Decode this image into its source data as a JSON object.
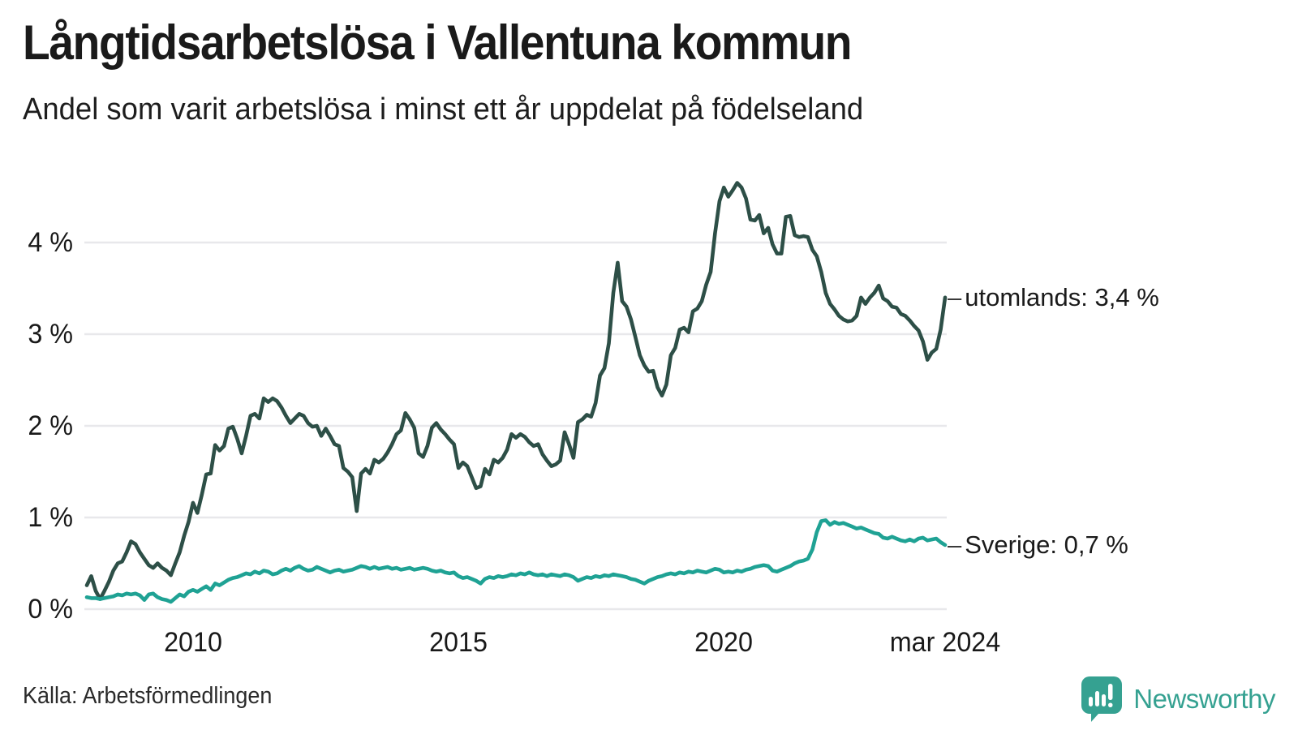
{
  "header": {
    "title": "Långtidsarbetslösa i Vallentuna kommun",
    "subtitle": "Andel som varit arbetslösa i minst ett år uppdelat på födelseland"
  },
  "footer": {
    "source": "Källa: Arbetsförmedlingen",
    "logo_text": "Newsworthy",
    "brand_color": "#35a191"
  },
  "chart_data": {
    "type": "line",
    "title": "Långtidsarbetslösa i Vallentuna kommun",
    "subtitle": "Andel som varit arbetslösa i minst ett år uppdelat på födelseland",
    "x_unit": "month",
    "x_start": "2008-01",
    "x_end": "2024-03",
    "ylim": [
      0,
      4.8
    ],
    "grid": "horizontal",
    "grid_color": "#e8e8eb",
    "label_dash": "–",
    "y_ticks": [
      {
        "value": 0,
        "label": "0 %"
      },
      {
        "value": 1,
        "label": "1 %"
      },
      {
        "value": 2,
        "label": "2 %"
      },
      {
        "value": 3,
        "label": "3 %"
      },
      {
        "value": 4,
        "label": "4 %"
      }
    ],
    "x_ticks": [
      {
        "label": "2010",
        "month_index": 24
      },
      {
        "label": "2015",
        "month_index": 84
      },
      {
        "label": "2020",
        "month_index": 144
      },
      {
        "label": "mar 2024",
        "month_index": 194
      }
    ],
    "series": [
      {
        "name": "utomlands",
        "end_label": "utomlands: 3,4 %",
        "last_value_label": "3,4 %",
        "color": "#2d4f47",
        "values": [
          0.26,
          0.36,
          0.2,
          0.11,
          0.2,
          0.3,
          0.42,
          0.5,
          0.52,
          0.62,
          0.74,
          0.71,
          0.62,
          0.55,
          0.48,
          0.45,
          0.5,
          0.45,
          0.42,
          0.37,
          0.5,
          0.62,
          0.8,
          0.95,
          1.16,
          1.05,
          1.25,
          1.47,
          1.48,
          1.79,
          1.73,
          1.78,
          1.97,
          1.99,
          1.86,
          1.7,
          1.89,
          2.11,
          2.13,
          2.08,
          2.3,
          2.26,
          2.3,
          2.27,
          2.2,
          2.11,
          2.03,
          2.08,
          2.13,
          2.11,
          2.03,
          1.99,
          2.0,
          1.89,
          1.97,
          1.89,
          1.8,
          1.78,
          1.54,
          1.5,
          1.44,
          1.07,
          1.48,
          1.53,
          1.48,
          1.63,
          1.6,
          1.64,
          1.71,
          1.8,
          1.91,
          1.95,
          2.14,
          2.07,
          1.98,
          1.7,
          1.66,
          1.78,
          1.98,
          2.03,
          1.96,
          1.91,
          1.85,
          1.8,
          1.54,
          1.6,
          1.56,
          1.44,
          1.32,
          1.34,
          1.53,
          1.47,
          1.63,
          1.6,
          1.65,
          1.74,
          1.91,
          1.87,
          1.91,
          1.88,
          1.82,
          1.78,
          1.8,
          1.69,
          1.62,
          1.56,
          1.58,
          1.62,
          1.93,
          1.8,
          1.65,
          2.04,
          2.07,
          2.12,
          2.1,
          2.25,
          2.55,
          2.63,
          2.9,
          3.45,
          3.78,
          3.36,
          3.3,
          3.16,
          2.97,
          2.77,
          2.66,
          2.59,
          2.6,
          2.42,
          2.33,
          2.45,
          2.77,
          2.85,
          3.05,
          3.07,
          3.02,
          3.25,
          3.28,
          3.36,
          3.54,
          3.68,
          4.1,
          4.45,
          4.6,
          4.5,
          4.57,
          4.65,
          4.6,
          4.48,
          4.25,
          4.24,
          4.3,
          4.1,
          4.16,
          3.98,
          3.88,
          3.88,
          4.28,
          4.29,
          4.08,
          4.06,
          4.07,
          4.06,
          3.92,
          3.85,
          3.68,
          3.45,
          3.33,
          3.27,
          3.2,
          3.16,
          3.14,
          3.15,
          3.2,
          3.4,
          3.33,
          3.4,
          3.45,
          3.53,
          3.39,
          3.36,
          3.3,
          3.29,
          3.22,
          3.2,
          3.15,
          3.09,
          3.04,
          2.92,
          2.72,
          2.8,
          2.84,
          3.05,
          3.4
        ]
      },
      {
        "name": "Sverige",
        "end_label": "Sverige: 0,7 %",
        "last_value_label": "0,7 %",
        "color": "#1fa294",
        "values": [
          0.13,
          0.12,
          0.12,
          0.11,
          0.12,
          0.13,
          0.14,
          0.16,
          0.15,
          0.17,
          0.16,
          0.17,
          0.15,
          0.1,
          0.16,
          0.17,
          0.13,
          0.11,
          0.1,
          0.08,
          0.12,
          0.16,
          0.14,
          0.19,
          0.21,
          0.19,
          0.22,
          0.25,
          0.21,
          0.28,
          0.26,
          0.29,
          0.32,
          0.34,
          0.35,
          0.37,
          0.39,
          0.38,
          0.41,
          0.39,
          0.42,
          0.41,
          0.38,
          0.39,
          0.42,
          0.44,
          0.42,
          0.45,
          0.47,
          0.44,
          0.42,
          0.43,
          0.46,
          0.44,
          0.42,
          0.4,
          0.42,
          0.43,
          0.41,
          0.42,
          0.43,
          0.45,
          0.47,
          0.46,
          0.44,
          0.46,
          0.44,
          0.45,
          0.46,
          0.44,
          0.45,
          0.43,
          0.44,
          0.45,
          0.43,
          0.44,
          0.45,
          0.44,
          0.42,
          0.41,
          0.42,
          0.4,
          0.39,
          0.4,
          0.36,
          0.34,
          0.35,
          0.33,
          0.31,
          0.28,
          0.33,
          0.35,
          0.34,
          0.36,
          0.35,
          0.36,
          0.38,
          0.37,
          0.39,
          0.38,
          0.4,
          0.38,
          0.37,
          0.38,
          0.36,
          0.38,
          0.37,
          0.36,
          0.38,
          0.37,
          0.35,
          0.31,
          0.33,
          0.35,
          0.34,
          0.36,
          0.35,
          0.37,
          0.36,
          0.38,
          0.37,
          0.36,
          0.35,
          0.33,
          0.32,
          0.3,
          0.28,
          0.31,
          0.33,
          0.35,
          0.36,
          0.38,
          0.39,
          0.38,
          0.4,
          0.39,
          0.41,
          0.4,
          0.42,
          0.41,
          0.4,
          0.42,
          0.44,
          0.43,
          0.4,
          0.41,
          0.4,
          0.42,
          0.41,
          0.43,
          0.44,
          0.46,
          0.47,
          0.48,
          0.47,
          0.42,
          0.41,
          0.43,
          0.45,
          0.47,
          0.5,
          0.52,
          0.53,
          0.55,
          0.65,
          0.84,
          0.96,
          0.97,
          0.92,
          0.95,
          0.93,
          0.94,
          0.92,
          0.9,
          0.88,
          0.89,
          0.87,
          0.85,
          0.83,
          0.82,
          0.78,
          0.77,
          0.79,
          0.77,
          0.75,
          0.74,
          0.76,
          0.74,
          0.77,
          0.78,
          0.75,
          0.76,
          0.77,
          0.73,
          0.7
        ]
      }
    ]
  }
}
